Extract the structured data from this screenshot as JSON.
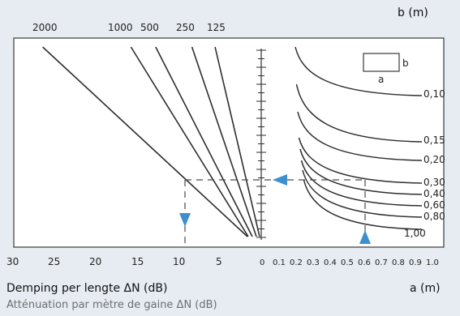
{
  "chart_data": {
    "type": "line",
    "title_nl": "Demping per lengte ΔN (dB)",
    "title_fr": "Atténuation par mètre de gaine ΔN (dB)",
    "left_axis": {
      "ticks": [
        30,
        25,
        20,
        15,
        10,
        5
      ],
      "range": [
        30,
        0
      ]
    },
    "right_axis": {
      "label": "a (m)",
      "ticks": [
        "0",
        "0.1",
        "0.2",
        "0.3",
        "0.4",
        "0.5",
        "0.6",
        "0.7",
        "0.8",
        "0.9",
        "1.0"
      ],
      "range": [
        0,
        1.0
      ]
    },
    "b_axis": {
      "label": "b (m)",
      "ticks": [
        "0,10",
        "0,15",
        "0,20",
        "0,30",
        "0,40",
        "0,60",
        "0,80",
        "1,00"
      ]
    },
    "frequency_labels": [
      "2000",
      "1000",
      "500",
      "250",
      "125"
    ],
    "frequency_lines": [
      {
        "name": "2000",
        "db_top": 26.5
      },
      {
        "name": "1000",
        "db_top": 15.8
      },
      {
        "name": "500",
        "db_top": 12.8
      },
      {
        "name": "250",
        "db_top": 8.4
      },
      {
        "name": "125",
        "db_top": 5.6
      }
    ],
    "b_curves": [
      "0,10",
      "0,15",
      "0,20",
      "0,30",
      "0,40",
      "0,60",
      "0,80",
      "1,00"
    ],
    "example": {
      "a": 0.6,
      "db": 9.5
    },
    "legend_box": {
      "a_label": "a",
      "b_label": "b"
    }
  }
}
